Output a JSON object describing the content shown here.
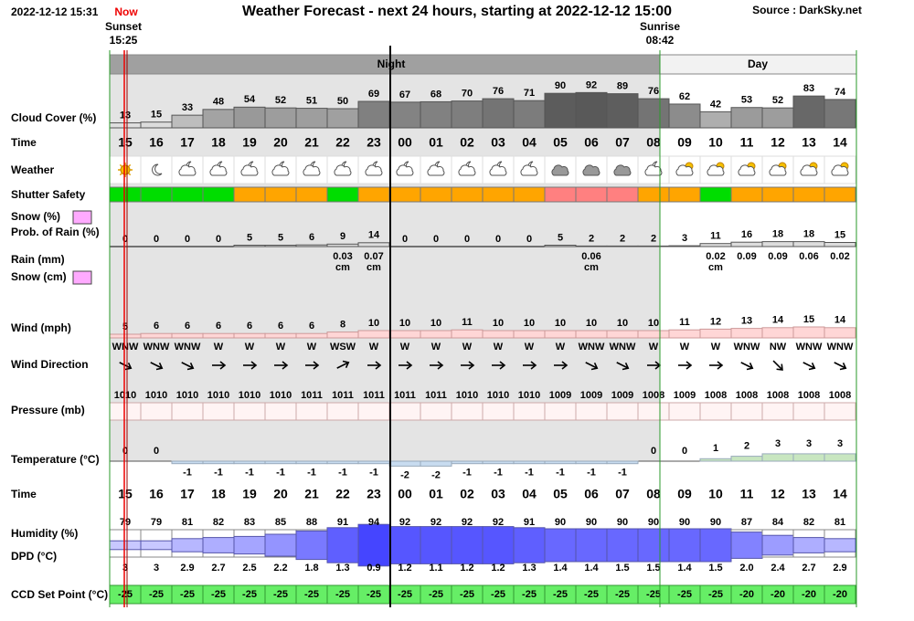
{
  "chart_data": {
    "type": "forecast-table",
    "header": {
      "timestamp": "2022-12-12 15:31",
      "now": "Now",
      "title": "Weather Forecast - next 24 hours, starting at 2022-12-12 15:00",
      "source": "Source : DarkSky.net"
    },
    "sun": {
      "sunset_label": "Sunset",
      "sunset_time": "15:25",
      "sunrise_label": "Sunrise",
      "sunrise_time": "08:42"
    },
    "periods": {
      "night": "Night",
      "day": "Day"
    },
    "hours": [
      "15",
      "16",
      "17",
      "18",
      "19",
      "20",
      "21",
      "22",
      "23",
      "00",
      "01",
      "02",
      "03",
      "04",
      "05",
      "06",
      "07",
      "08",
      "09",
      "10",
      "11",
      "12",
      "13",
      "14"
    ],
    "rows": {
      "cloud_cover": {
        "label": "Cloud Cover (%)",
        "values": [
          13,
          15,
          33,
          48,
          54,
          52,
          51,
          50,
          69,
          67,
          68,
          70,
          76,
          71,
          90,
          92,
          89,
          76,
          62,
          42,
          53,
          52,
          83,
          74
        ]
      },
      "time": {
        "label": "Time"
      },
      "weather": {
        "label": "Weather"
      },
      "shutter_safety": {
        "label": "Shutter Safety",
        "colors": [
          "#00dd00",
          "#00dd00",
          "#00dd00",
          "#00dd00",
          "#ffa500",
          "#ffa500",
          "#ffa500",
          "#00dd00",
          "#ffa500",
          "#ffa500",
          "#ffa500",
          "#ffa500",
          "#ffa500",
          "#ffa500",
          "#ff8080",
          "#ff8080",
          "#ff8080",
          "#ffa500",
          "#ffa500",
          "#00dd00",
          "#ffa500",
          "#ffa500",
          "#ffa500",
          "#ffa500"
        ]
      },
      "precip_prob": {
        "label_snow": "Snow (%)",
        "label_rain": "Prob. of Rain (%)",
        "values": [
          0,
          0,
          0,
          0,
          5,
          5,
          6,
          9,
          14,
          0,
          0,
          0,
          0,
          0,
          5,
          2,
          2,
          2,
          3,
          11,
          16,
          18,
          18,
          15
        ]
      },
      "precip_amount": {
        "label_rain": "Rain (mm)",
        "label_snow": "Snow (cm)",
        "values": [
          null,
          null,
          null,
          null,
          null,
          null,
          null,
          0.03,
          0.07,
          null,
          null,
          null,
          null,
          null,
          null,
          0.06,
          null,
          null,
          null,
          0.02,
          0.09,
          0.09,
          0.06,
          0.02
        ],
        "snow_units": [
          null,
          null,
          null,
          null,
          null,
          null,
          null,
          "cm",
          "cm",
          null,
          null,
          null,
          null,
          null,
          null,
          "cm",
          null,
          null,
          null,
          "cm",
          null,
          null,
          null,
          null
        ]
      },
      "wind": {
        "label": "Wind (mph)",
        "values": [
          5,
          6,
          6,
          6,
          6,
          6,
          6,
          8,
          10,
          10,
          10,
          11,
          10,
          10,
          10,
          10,
          10,
          10,
          11,
          12,
          13,
          14,
          15,
          14
        ]
      },
      "wind_direction": {
        "label": "Wind Direction",
        "values": [
          "WNW",
          "WNW",
          "WNW",
          "W",
          "W",
          "W",
          "W",
          "WSW",
          "W",
          "W",
          "W",
          "W",
          "W",
          "W",
          "W",
          "WNW",
          "WNW",
          "W",
          "W",
          "W",
          "WNW",
          "NW",
          "WNW",
          "WNW"
        ]
      },
      "pressure": {
        "label": "Pressure (mb)",
        "values": [
          1010,
          1010,
          1010,
          1010,
          1010,
          1010,
          1011,
          1011,
          1011,
          1011,
          1011,
          1010,
          1010,
          1010,
          1009,
          1009,
          1009,
          1008,
          1009,
          1008,
          1008,
          1008,
          1008,
          1008
        ]
      },
      "temperature": {
        "label": "Temperature (°C)",
        "values": [
          0,
          0,
          -1,
          -1,
          -1,
          -1,
          -1,
          -1,
          -1,
          -2,
          -2,
          -1,
          -1,
          -1,
          -1,
          -1,
          -1,
          0,
          0,
          1,
          2,
          3,
          3,
          3
        ]
      },
      "humidity": {
        "label": "Humidity (%)",
        "values": [
          79,
          79,
          81,
          82,
          83,
          85,
          88,
          91,
          94,
          92,
          92,
          92,
          92,
          91,
          90,
          90,
          90,
          90,
          90,
          90,
          87,
          84,
          82,
          81
        ]
      },
      "dpd": {
        "label": "DPD (°C)",
        "values": [
          3,
          3,
          2.9,
          2.7,
          2.5,
          2.2,
          1.8,
          1.3,
          0.9,
          1.2,
          1.1,
          1.2,
          1.2,
          1.3,
          1.4,
          1.4,
          1.5,
          1.5,
          1.4,
          1.5,
          2.0,
          2.4,
          2.7,
          2.9
        ],
        "value_labels": [
          "3",
          "3",
          "2.9",
          "2.7",
          "2.5",
          "2.2",
          "1.8",
          "1.3",
          "0.9",
          "1.2",
          "1.1",
          "1.2",
          "1.2",
          "1.3",
          "1.4",
          "1.4",
          "1.5",
          "1.5",
          "1.4",
          "1.5",
          "2.0",
          "2.4",
          "2.7",
          "2.9"
        ]
      },
      "ccd_set_point": {
        "label": "CCD Set Point (°C)",
        "values": [
          -25,
          -25,
          -25,
          -25,
          -25,
          -25,
          -25,
          -25,
          -25,
          -25,
          -25,
          -25,
          -25,
          -25,
          -25,
          -25,
          -25,
          -25,
          -25,
          -25,
          -20,
          -20,
          -20,
          -20
        ]
      }
    }
  }
}
